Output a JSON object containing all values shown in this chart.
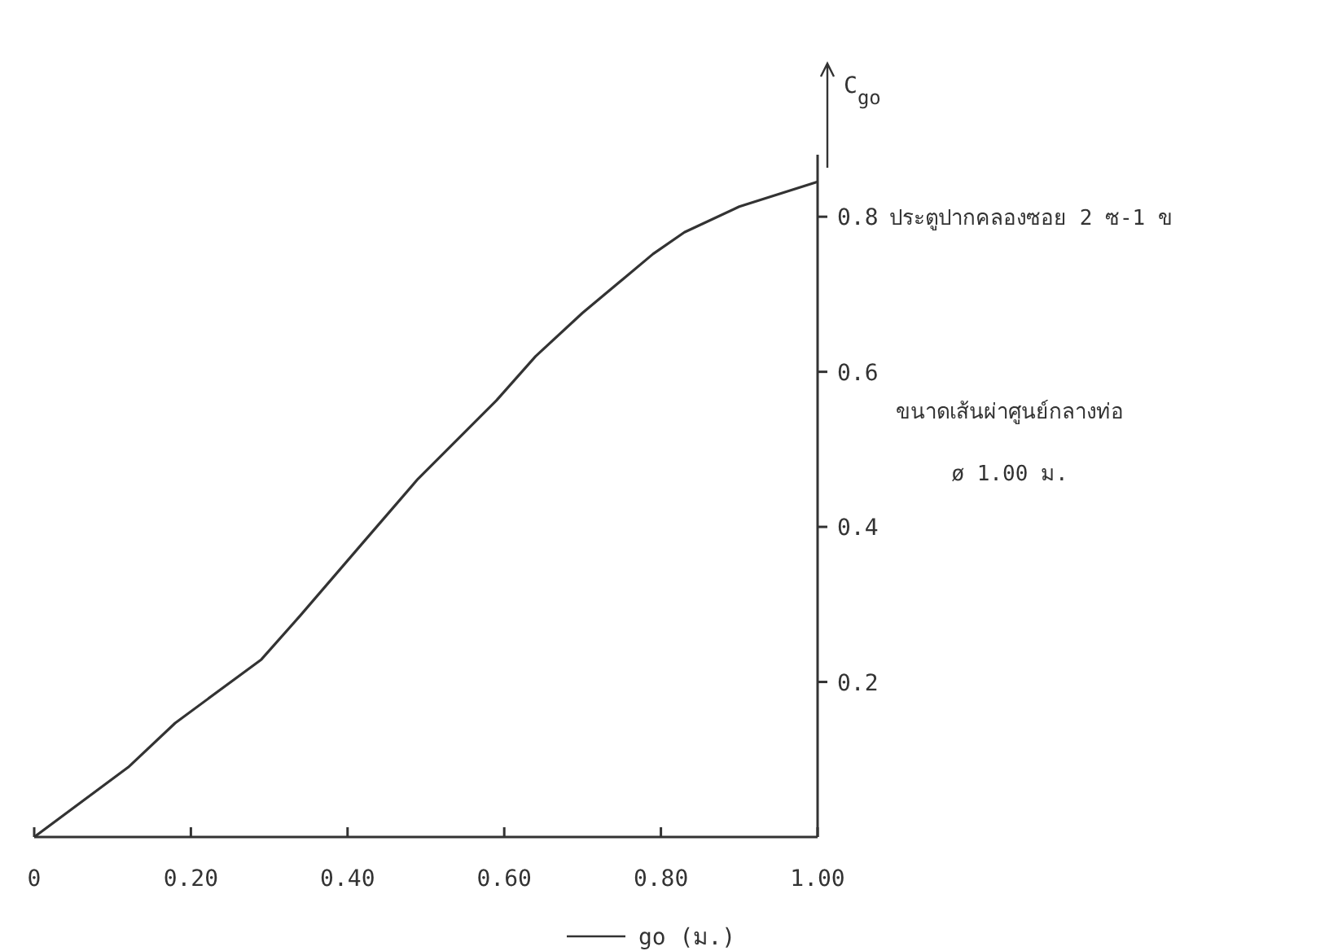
{
  "chart_data": {
    "type": "line",
    "xlabel": "go (ม.)",
    "ylabel": "C$_{go}$",
    "annotations": [
      "ประตูปากคลองซอย 2 ซ-1 ข",
      "ขนาดเส้นผ่าศูนย์กลางท่อ",
      "ø 1.00 ม."
    ],
    "xlim": [
      0,
      1
    ],
    "ylim": [
      0,
      0.88
    ],
    "xticks": [
      0,
      {
        "value": 0.2,
        "label": "0.20"
      },
      {
        "value": 0.4,
        "label": "0.40"
      },
      {
        "value": 0.6,
        "label": "0.60"
      },
      {
        "value": 0.8,
        "label": "0.80"
      },
      {
        "value": 1,
        "label": "1.00"
      }
    ],
    "yticks": [
      0.2,
      0.4,
      0.6,
      0.8
    ],
    "marker": "none",
    "line_style": "solid",
    "x": [
      0,
      0.12,
      0.18,
      0.29,
      0.34,
      0.42,
      0.49,
      0.59,
      0.64,
      0.7,
      0.79,
      0.83,
      0.9,
      1.0
    ],
    "series": [
      {
        "color": "#333333",
        "values": [
          0,
          0.09,
          0.147,
          0.229,
          0.286,
          0.38,
          0.462,
          0.563,
          0.62,
          0.676,
          0.752,
          0.78,
          0.813,
          0.845
        ]
      }
    ]
  }
}
